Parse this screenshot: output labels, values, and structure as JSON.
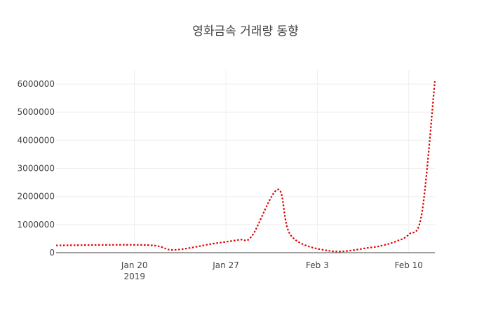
{
  "chart_data": {
    "type": "line",
    "title": "영화금속 거래량 동향",
    "xlabel": "",
    "ylabel": "",
    "grid": true,
    "legend": "none",
    "series_color": "#e00000",
    "line_style": "dotted",
    "xlim": [
      "2019-01-14",
      "2019-02-12"
    ],
    "ylim": [
      0,
      6500000
    ],
    "yticks": [
      0,
      1000000,
      2000000,
      3000000,
      4000000,
      5000000,
      6000000
    ],
    "ytick_labels": [
      "0",
      "1000000",
      "2000000",
      "3000000",
      "4000000",
      "5000000",
      "6000000"
    ],
    "xticks": [
      {
        "date": "2019-01-20",
        "label": "Jan 20",
        "sublabel": "2019"
      },
      {
        "date": "2019-01-27",
        "label": "Jan 27",
        "sublabel": ""
      },
      {
        "date": "2019-02-03",
        "label": "Feb 3",
        "sublabel": ""
      },
      {
        "date": "2019-02-10",
        "label": "Feb 10",
        "sublabel": ""
      }
    ],
    "series": [
      {
        "name": "거래량",
        "x": [
          "2019-01-14",
          "2019-01-21",
          "2019-01-23",
          "2019-01-26",
          "2019-01-28",
          "2019-01-29",
          "2019-01-31",
          "2019-02-01",
          "2019-02-04",
          "2019-02-07",
          "2019-02-08",
          "2019-02-09",
          "2019-02-10",
          "2019-02-11",
          "2019-02-12"
        ],
        "values": [
          260000,
          270000,
          100000,
          320000,
          460000,
          600000,
          2250000,
          600000,
          60000,
          180000,
          260000,
          400000,
          650000,
          1400000,
          6100000
        ]
      }
    ]
  }
}
